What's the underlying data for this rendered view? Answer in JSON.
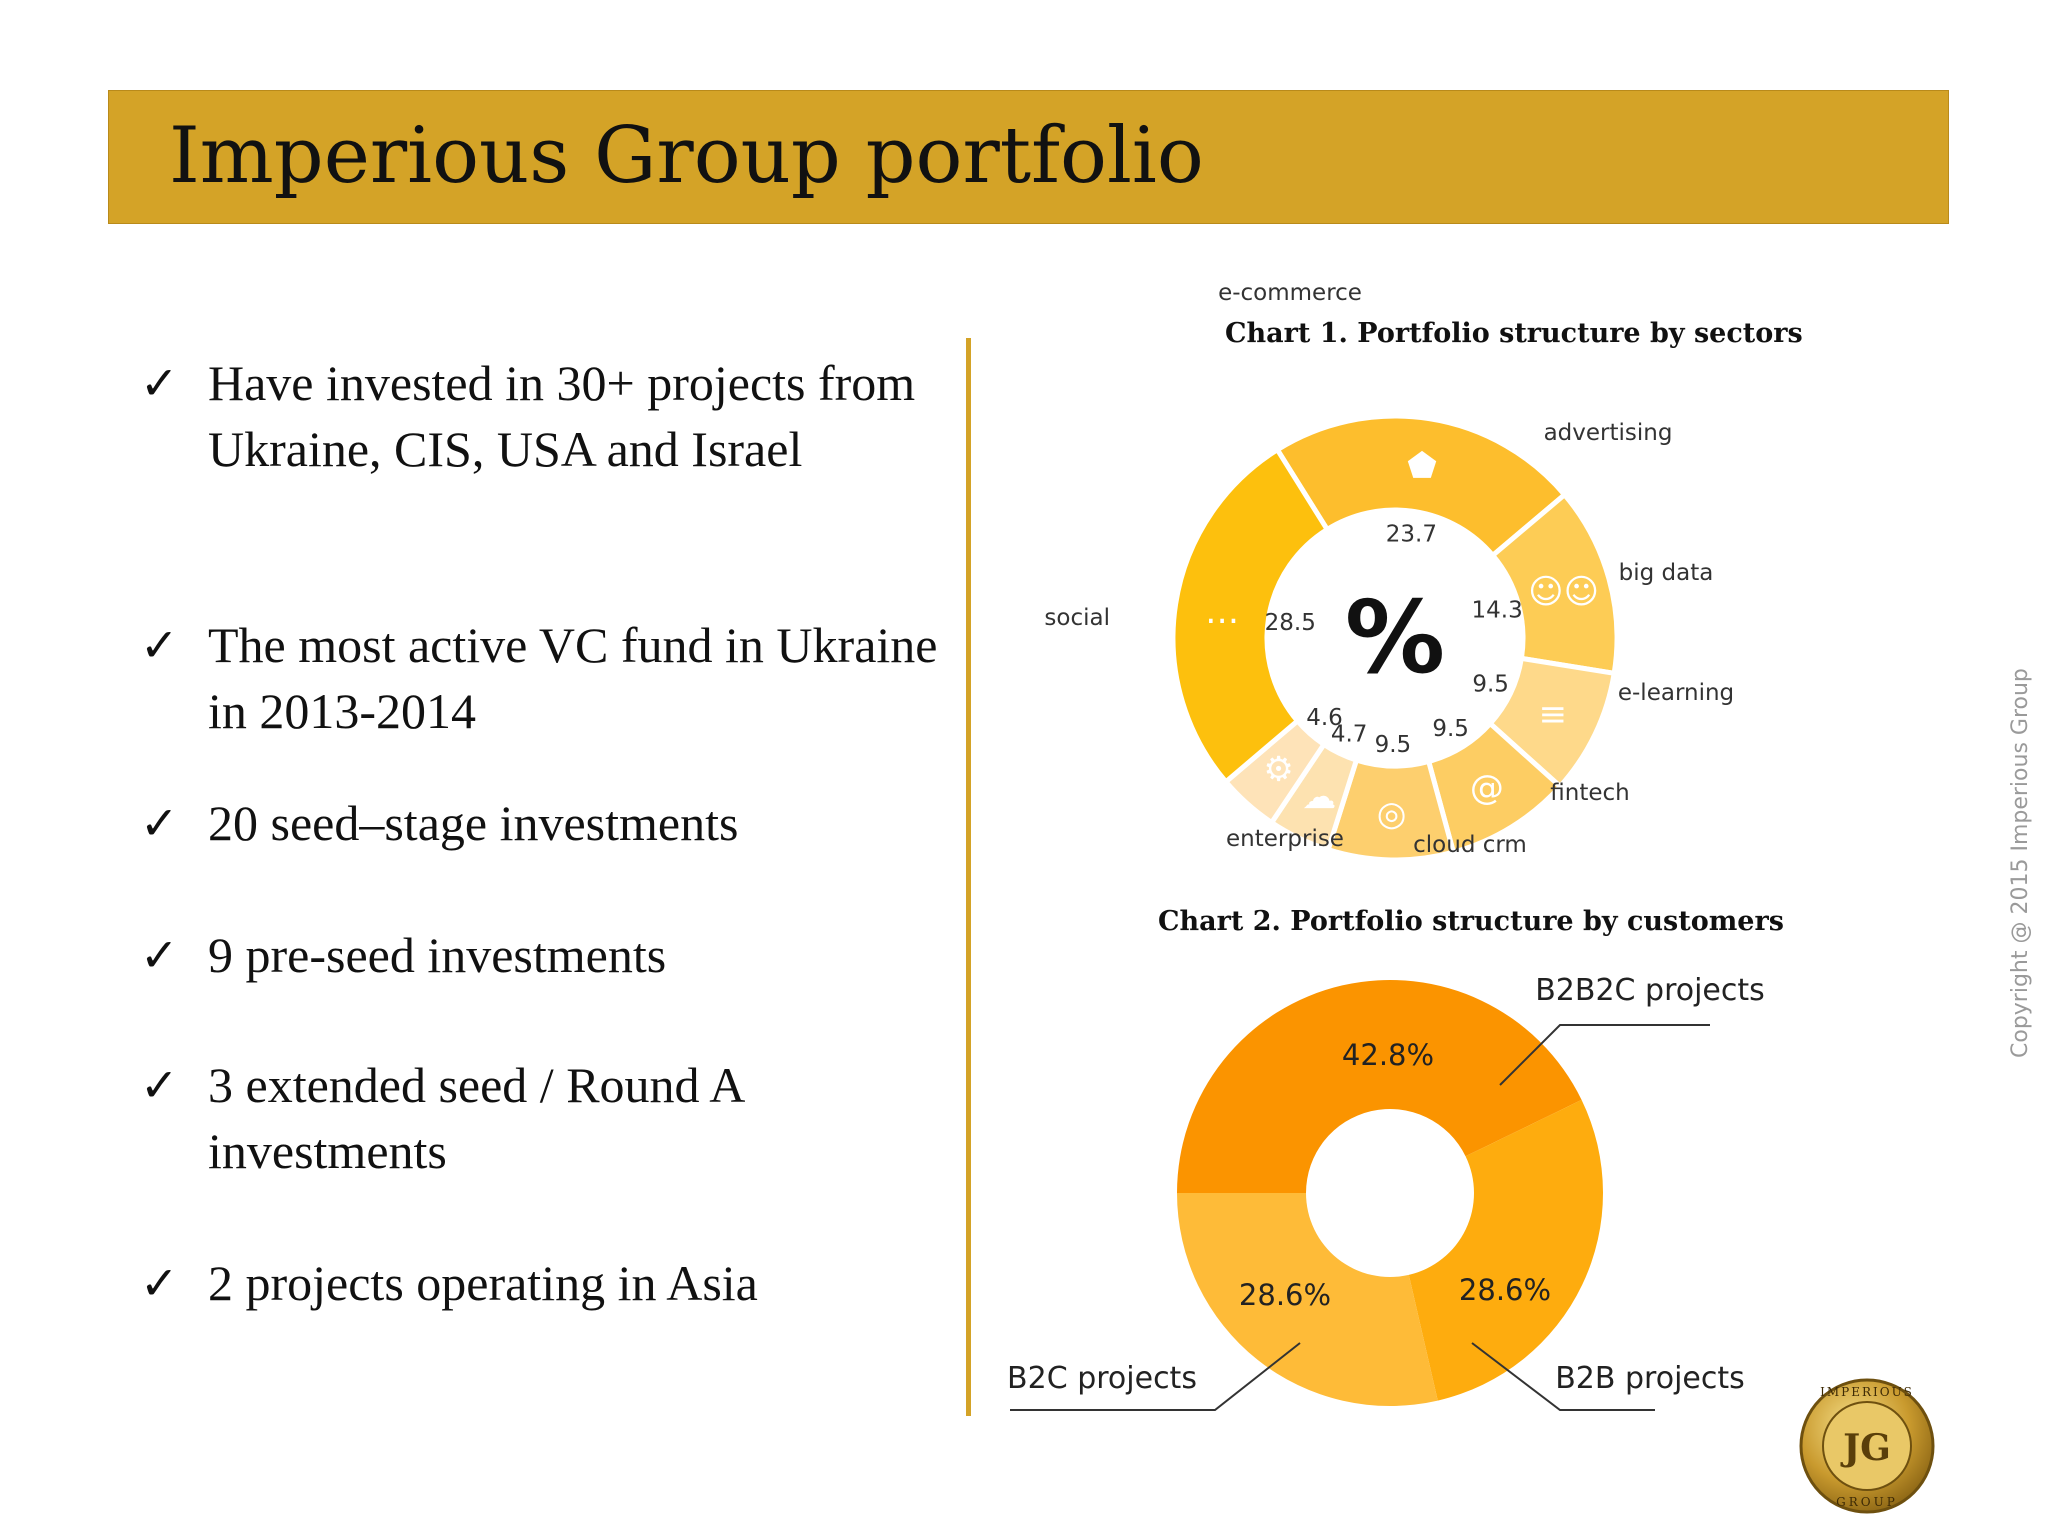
{
  "header": {
    "title": "Imperious Group portfolio"
  },
  "bullets": [
    "Have invested in 30+ projects from Ukraine, CIS, USA and Israel",
    "The most active VC fund in Ukraine in 2013-2014",
    "20 seed–stage investments",
    "9 pre-seed investments",
    "3 extended seed / Round A investments",
    "2 projects operating in Asia"
  ],
  "check_symbol": "✓",
  "center_symbol": "%",
  "copyright": "Copyright @ 2015 Imperious Group",
  "logo": {
    "top": "IMPERIOUS",
    "bottom": "GROUP",
    "mono": "JG"
  },
  "chart_data": [
    {
      "type": "pie",
      "title": "Chart 1. Portfolio structure by sectors",
      "categories": [
        "e-commerce",
        "advertising",
        "big data",
        "e-learning",
        "fintech",
        "cloud crm",
        "enterprise",
        "social"
      ],
      "values": [
        23.7,
        14.3,
        9.5,
        9.5,
        9.5,
        4.7,
        4.6,
        28.5
      ],
      "value_labels": [
        "23.7",
        "14.3",
        "9.5",
        "9.5",
        "9.5",
        "4.7",
        "4.6",
        "28.5"
      ],
      "colors": [
        "#FDBE2D",
        "#FDCC55",
        "#FED98A",
        "#FDCD63",
        "#FDCF6E",
        "#FDE2B0",
        "#FEE3B8",
        "#FDC00D"
      ],
      "icons": [
        "price-tag-icon",
        "people-icon",
        "binary-data-icon",
        "at-sign-icon",
        "globe-icon",
        "cloud-icon",
        "gear-icon",
        "speech-bubbles-icon"
      ]
    },
    {
      "type": "pie",
      "title": "Chart 2. Portfolio structure by customers",
      "categories": [
        "B2B2C projects",
        "B2B projects",
        "B2C projects"
      ],
      "values": [
        42.8,
        28.6,
        28.6
      ],
      "value_labels": [
        "42.8%",
        "28.6%",
        "28.6%"
      ],
      "colors": [
        "#FB9400",
        "#FEAC0E",
        "#FEBB38"
      ]
    }
  ]
}
